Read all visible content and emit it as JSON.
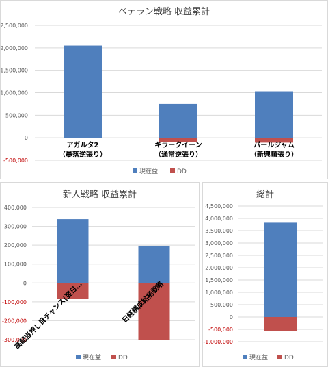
{
  "colors": {
    "profit": "#4f7fbd",
    "dd": "#c0504d"
  },
  "chart_data": [
    {
      "type": "bar",
      "title": "ベテラン戦略 収益累計",
      "categories": [
        [
          "アガルタ2",
          "（暴落逆張り）"
        ],
        [
          "キラークイーン",
          "（通常逆張り）"
        ],
        [
          "パールジャム",
          "（新興順張り）"
        ]
      ],
      "ylim": [
        -500000,
        2500000
      ],
      "yticks": [
        2500000,
        2000000,
        1500000,
        1000000,
        500000,
        0,
        -500000
      ],
      "ytick_labels": [
        "2,500,000",
        "2,000,000",
        "1,500,000",
        "1,000,000",
        "500,000",
        "0",
        "-500,000"
      ],
      "series": [
        {
          "name": "現在益",
          "values": [
            2050000,
            750000,
            1030000
          ]
        },
        {
          "name": "DD",
          "values": [
            0,
            -100000,
            -110000
          ]
        }
      ],
      "legend": "bottom",
      "grid": true
    },
    {
      "type": "bar",
      "title": "新人戦略 収益累計",
      "categories": [
        "高配当押し目チャンス(翌日…",
        "日経構成銘柄戦略"
      ],
      "ylim": [
        -300000,
        400000
      ],
      "yticks": [
        400000,
        300000,
        200000,
        100000,
        0,
        -100000,
        -200000,
        -300000
      ],
      "ytick_labels": [
        "400,000",
        "300,000",
        "200,000",
        "100,000",
        "0",
        "-100,000",
        "-200,000",
        "-300,000"
      ],
      "series": [
        {
          "name": "現在益",
          "values": [
            338000,
            197000
          ]
        },
        {
          "name": "DD",
          "values": [
            -85000,
            -300000
          ]
        }
      ],
      "legend": "bottom",
      "grid": true
    },
    {
      "type": "bar",
      "title": "総計",
      "categories": [
        ""
      ],
      "ylim": [
        -1000000,
        4500000
      ],
      "yticks": [
        4500000,
        4000000,
        3500000,
        3000000,
        2500000,
        2000000,
        1500000,
        1000000,
        500000,
        0,
        -500000,
        -1000000
      ],
      "ytick_labels": [
        "4,500,000",
        "4,000,000",
        "3,500,000",
        "3,000,000",
        "2,500,000",
        "2,000,000",
        "1,500,000",
        "1,000,000",
        "500,000",
        "0",
        "-500,000",
        "-1,000,000"
      ],
      "series": [
        {
          "name": "現在益",
          "values": [
            3850000
          ]
        },
        {
          "name": "DD",
          "values": [
            -580000
          ]
        }
      ],
      "legend": "bottom",
      "grid": true
    }
  ]
}
